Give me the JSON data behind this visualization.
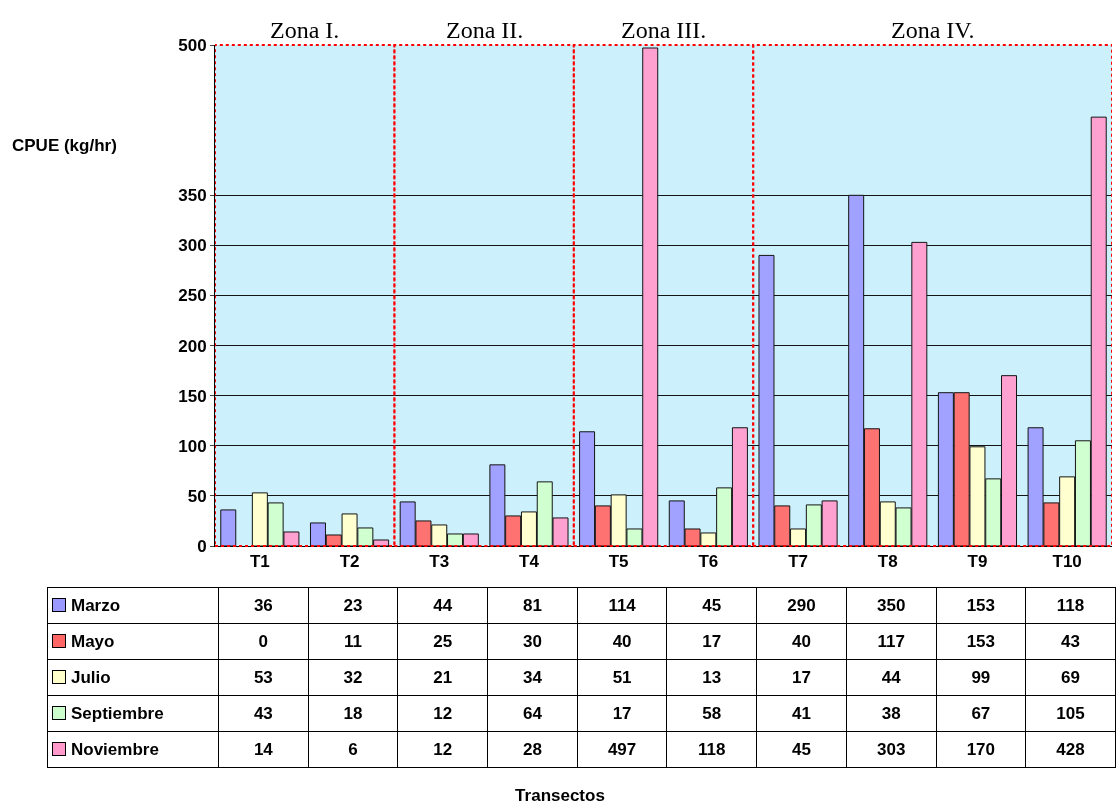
{
  "chart_data": {
    "type": "bar",
    "annotations": [
      "Transectos"
    ],
    "ylabel": "CPUE (kg/hr)",
    "categories": [
      "T1",
      "T2",
      "T3",
      "T4",
      "T5",
      "T6",
      "T7",
      "T8",
      "T9",
      "T10"
    ],
    "series": [
      {
        "name": "Marzo",
        "color": "#9999ff",
        "values": [
          36,
          23,
          44,
          81,
          114,
          45,
          290,
          350,
          153,
          118
        ]
      },
      {
        "name": "Mayo",
        "color": "#ff6666",
        "values": [
          0,
          11,
          25,
          30,
          40,
          17,
          40,
          117,
          153,
          43
        ]
      },
      {
        "name": "Julio",
        "color": "#ffffcc",
        "values": [
          53,
          32,
          21,
          34,
          51,
          13,
          17,
          44,
          99,
          69
        ]
      },
      {
        "name": "Septiembre",
        "color": "#ccffcc",
        "values": [
          43,
          18,
          12,
          64,
          17,
          58,
          41,
          38,
          67,
          105
        ]
      },
      {
        "name": "Noviembre",
        "color": "#ff99cc",
        "values": [
          14,
          6,
          12,
          28,
          497,
          118,
          45,
          303,
          170,
          428
        ]
      }
    ],
    "ylim": [
      0,
      500
    ],
    "yticks": [
      0,
      50,
      100,
      150,
      200,
      250,
      300,
      350,
      500
    ],
    "grid": "y",
    "data_labels": true,
    "legend": "bottom",
    "bands": [
      {
        "axis": "x",
        "from": "T1",
        "to": "T2",
        "label": "Zona I.",
        "color": "#ff0000"
      },
      {
        "axis": "x",
        "from": "T3",
        "to": "T4",
        "label": "Zona II.",
        "color": "#ff0000"
      },
      {
        "axis": "x",
        "from": "T5",
        "to": "T6",
        "label": "Zona III.",
        "color": "#ff0000"
      },
      {
        "axis": "x",
        "from": "T7",
        "to": "T10",
        "label": "Zona IV.",
        "color": "#ff0000"
      }
    ]
  }
}
